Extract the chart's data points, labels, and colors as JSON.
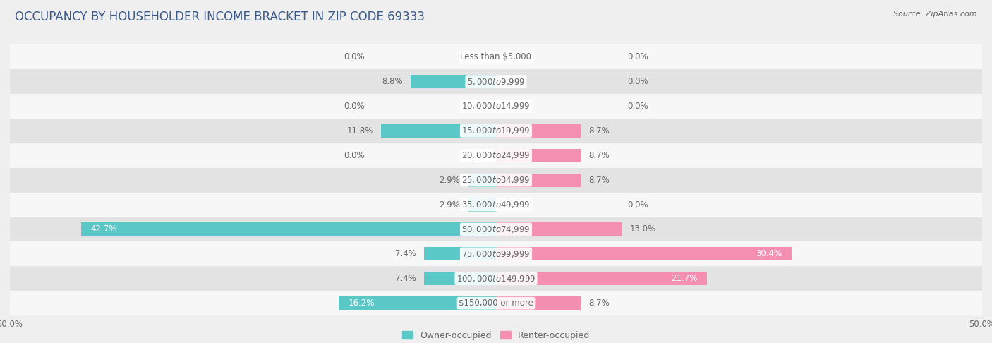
{
  "title": "OCCUPANCY BY HOUSEHOLDER INCOME BRACKET IN ZIP CODE 69333",
  "source": "Source: ZipAtlas.com",
  "categories": [
    "Less than $5,000",
    "$5,000 to $9,999",
    "$10,000 to $14,999",
    "$15,000 to $19,999",
    "$20,000 to $24,999",
    "$25,000 to $34,999",
    "$35,000 to $49,999",
    "$50,000 to $74,999",
    "$75,000 to $99,999",
    "$100,000 to $149,999",
    "$150,000 or more"
  ],
  "owner_values": [
    0.0,
    8.8,
    0.0,
    11.8,
    0.0,
    2.9,
    2.9,
    42.7,
    7.4,
    7.4,
    16.2
  ],
  "renter_values": [
    0.0,
    0.0,
    0.0,
    8.7,
    8.7,
    8.7,
    0.0,
    13.0,
    30.4,
    21.7,
    8.7
  ],
  "owner_color": "#5bc8c8",
  "renter_color": "#f48fb1",
  "background_color": "#efefef",
  "row_bg_light": "#f7f7f7",
  "row_bg_dark": "#e3e3e3",
  "axis_limit": 50.0,
  "bar_height": 0.55,
  "label_fontsize": 8.5,
  "title_fontsize": 12,
  "legend_fontsize": 9,
  "source_fontsize": 8,
  "title_color": "#3a5a8a",
  "label_color": "#666666",
  "white_label_color": "#ffffff"
}
